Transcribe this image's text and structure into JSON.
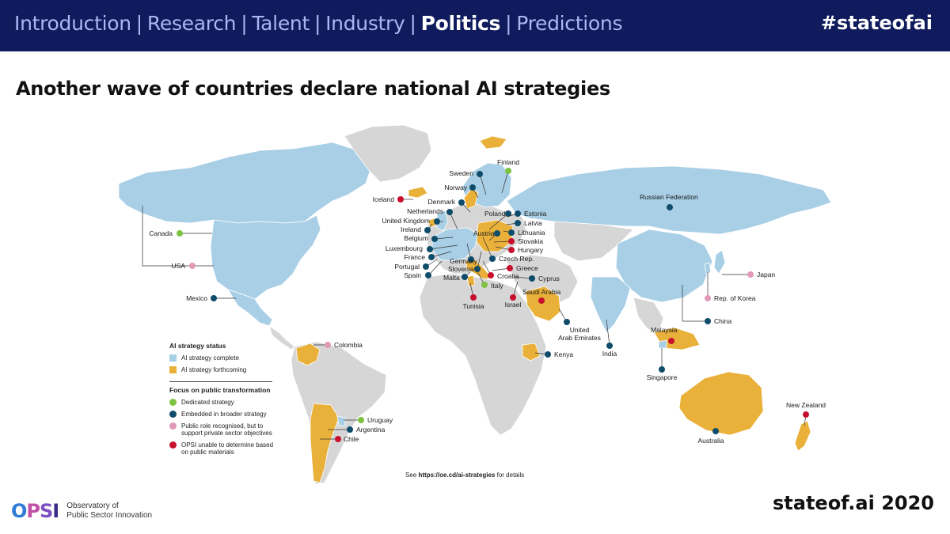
{
  "nav": {
    "items": [
      {
        "label": "Introduction",
        "active": false
      },
      {
        "label": "Research",
        "active": false
      },
      {
        "label": "Talent",
        "active": false
      },
      {
        "label": "Industry",
        "active": false
      },
      {
        "label": "Politics",
        "active": true
      },
      {
        "label": "Predictions",
        "active": false
      }
    ],
    "separator": "|",
    "hashtag": "#stateofai"
  },
  "slide": {
    "title": "Another wave of countries declare national AI strategies"
  },
  "colors": {
    "header_bg": "#0f1b5c",
    "strategy_complete": "#a9cfe6",
    "strategy_forthcoming": "#e9b13a",
    "no_strategy": "#d6d6d6",
    "dedicated": "#7dc242",
    "embedded": "#0e4c6b",
    "private_sector": "#e09ab7",
    "unable": "#c8102e"
  },
  "legend": {
    "status_title": "AI strategy status",
    "status_items": [
      {
        "label": "AI strategy complete",
        "color": "#a9cfe6"
      },
      {
        "label": "AI strategy forthcoming",
        "color": "#e9b13a"
      }
    ],
    "focus_title": "Focus on public transformation",
    "focus_items": [
      {
        "label": "Dedicated strategy",
        "color": "#7dc242"
      },
      {
        "label": "Embedded in broader strategy",
        "color": "#0e4c6b"
      },
      {
        "label": "Public role recognised, but to support private sector objectives",
        "color": "#e09ab7"
      },
      {
        "label": "OPSI unable to determine based on public materials",
        "color": "#c8102e"
      }
    ]
  },
  "see_link": {
    "prefix": "See ",
    "url": "https://oe.cd/ai-strategies",
    "suffix": " for details"
  },
  "countries": [
    {
      "name": "Canada",
      "focus": "dedicated",
      "status": "complete"
    },
    {
      "name": "USA",
      "focus": "private",
      "status": "complete"
    },
    {
      "name": "Mexico",
      "focus": "embedded",
      "status": "complete"
    },
    {
      "name": "Colombia",
      "focus": "private",
      "status": "complete"
    },
    {
      "name": "Uruguay",
      "focus": "dedicated",
      "status": "complete"
    },
    {
      "name": "Argentina",
      "focus": "embedded",
      "status": "forthcoming"
    },
    {
      "name": "Chile",
      "focus": "unable",
      "status": "forthcoming"
    },
    {
      "name": "Iceland",
      "focus": "unable",
      "status": "forthcoming"
    },
    {
      "name": "Finland",
      "focus": "dedicated",
      "status": "complete"
    },
    {
      "name": "Sweden",
      "focus": "embedded",
      "status": "complete"
    },
    {
      "name": "Norway",
      "focus": "embedded",
      "status": "complete"
    },
    {
      "name": "Denmark",
      "focus": "embedded",
      "status": "complete"
    },
    {
      "name": "Netherlands",
      "focus": "embedded",
      "status": "complete"
    },
    {
      "name": "United Kingdom",
      "focus": "embedded",
      "status": "complete"
    },
    {
      "name": "Ireland",
      "focus": "embedded",
      "status": "forthcoming"
    },
    {
      "name": "Belgium",
      "focus": "embedded",
      "status": "forthcoming"
    },
    {
      "name": "Luxembourg",
      "focus": "embedded",
      "status": "complete"
    },
    {
      "name": "France",
      "focus": "embedded",
      "status": "complete"
    },
    {
      "name": "Portugal",
      "focus": "embedded",
      "status": "complete"
    },
    {
      "name": "Spain",
      "focus": "embedded",
      "status": "complete"
    },
    {
      "name": "Germany",
      "focus": "embedded",
      "status": "complete"
    },
    {
      "name": "Slovenia",
      "focus": "embedded",
      "status": "forthcoming"
    },
    {
      "name": "Malta",
      "focus": "embedded",
      "status": "complete"
    },
    {
      "name": "Italy",
      "focus": "dedicated",
      "status": "forthcoming"
    },
    {
      "name": "Tunisia",
      "focus": "unable",
      "status": "forthcoming"
    },
    {
      "name": "Poland",
      "focus": "embedded",
      "status": "forthcoming"
    },
    {
      "name": "Estonia",
      "focus": "embedded",
      "status": "complete"
    },
    {
      "name": "Latvia",
      "focus": "embedded",
      "status": "forthcoming"
    },
    {
      "name": "Lithuania",
      "focus": "embedded",
      "status": "complete"
    },
    {
      "name": "Austria",
      "focus": "embedded",
      "status": "forthcoming"
    },
    {
      "name": "Slovakia",
      "focus": "unable",
      "status": "forthcoming"
    },
    {
      "name": "Hungary",
      "focus": "unable",
      "status": "forthcoming"
    },
    {
      "name": "Czech Rep.",
      "focus": "embedded",
      "status": "complete"
    },
    {
      "name": "Greece",
      "focus": "unable",
      "status": "forthcoming"
    },
    {
      "name": "Croatia",
      "focus": "unable",
      "status": "forthcoming"
    },
    {
      "name": "Cyprus",
      "focus": "embedded",
      "status": "complete"
    },
    {
      "name": "Israel",
      "focus": "unable",
      "status": "forthcoming"
    },
    {
      "name": "Saudi Arabia",
      "focus": "unable",
      "status": "forthcoming"
    },
    {
      "name": "United Arab Emirates",
      "focus": "embedded",
      "status": "complete"
    },
    {
      "name": "Kenya",
      "focus": "embedded",
      "status": "forthcoming"
    },
    {
      "name": "Russian Federation",
      "focus": "embedded",
      "status": "complete"
    },
    {
      "name": "India",
      "focus": "embedded",
      "status": "complete"
    },
    {
      "name": "China",
      "focus": "embedded",
      "status": "complete"
    },
    {
      "name": "Japan",
      "focus": "private",
      "status": "complete"
    },
    {
      "name": "Rep. of Korea",
      "focus": "private",
      "status": "complete"
    },
    {
      "name": "Malaysia",
      "focus": "unable",
      "status": "forthcoming"
    },
    {
      "name": "Singapore",
      "focus": "embedded",
      "status": "complete"
    },
    {
      "name": "Australia",
      "focus": "embedded",
      "status": "forthcoming"
    },
    {
      "name": "New Zealand",
      "focus": "unable",
      "status": "forthcoming"
    }
  ],
  "footer": {
    "logo": "OPSI",
    "org_line1": "Observatory of",
    "org_line2": "Public Sector Innovation",
    "brand": "stateof.ai 2020"
  }
}
